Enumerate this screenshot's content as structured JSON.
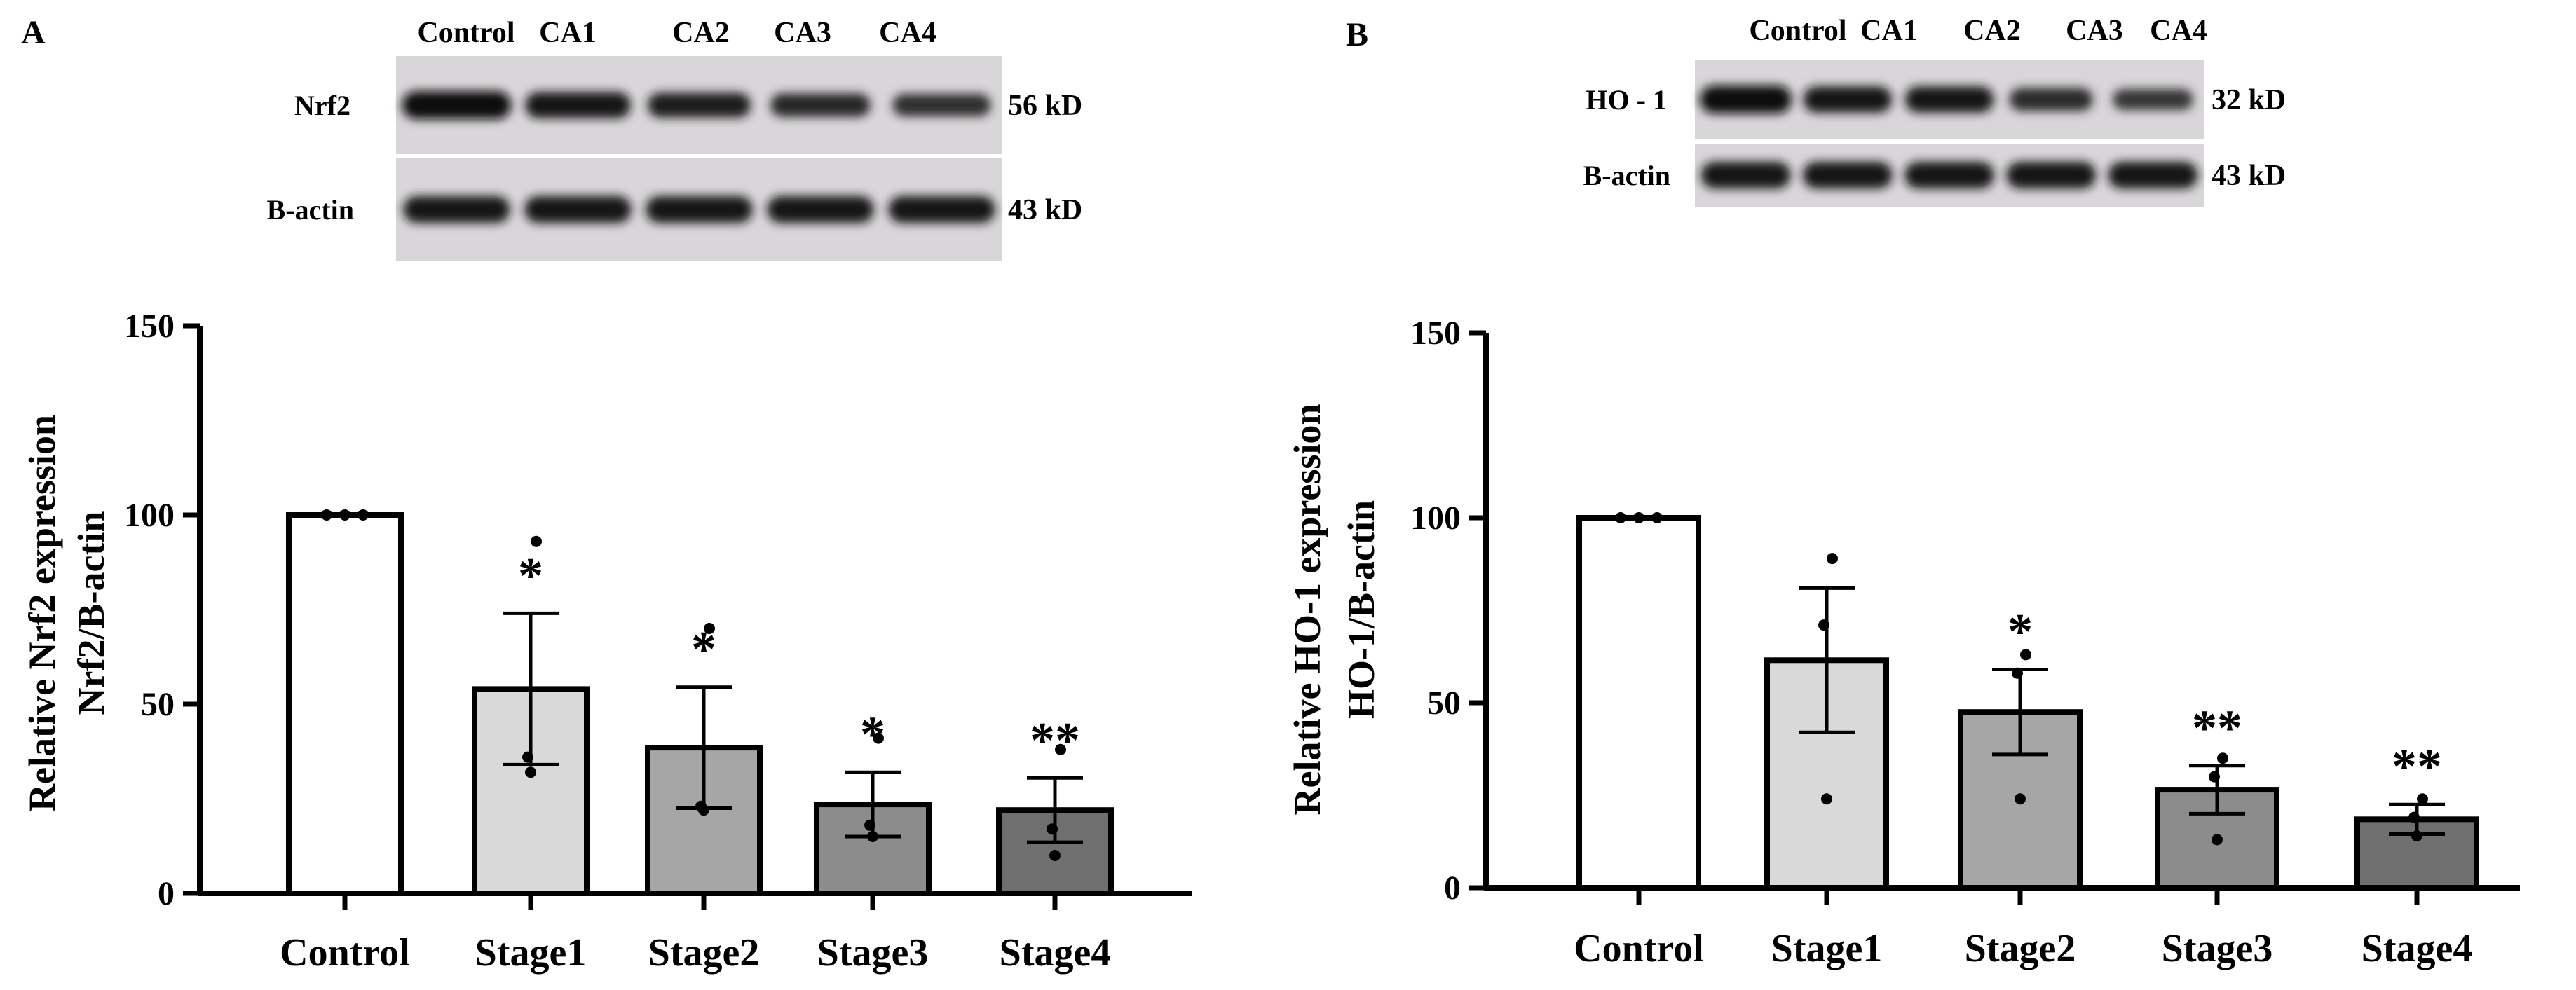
{
  "chart_data": [
    {
      "panel_label": "A",
      "type": "bar",
      "blot": {
        "lanes": [
          "Control",
          "CA1",
          "CA2",
          "CA3",
          "CA4"
        ],
        "rows": [
          {
            "label": "Nrf2",
            "size": "56 kD",
            "intensity": [
              1.0,
              0.85,
              0.75,
              0.62,
              0.55
            ]
          },
          {
            "label": "B-actin",
            "size": "43 kD",
            "intensity": [
              0.9,
              0.9,
              0.9,
              0.9,
              0.9
            ]
          }
        ]
      },
      "categories": [
        "Control",
        "Stage1",
        "Stage2",
        "Stage3",
        "Stage4"
      ],
      "values": [
        100,
        54,
        38.5,
        23.5,
        22
      ],
      "errors": [
        0,
        20,
        16,
        8.5,
        8.5
      ],
      "points": [
        [
          100,
          100,
          100
        ],
        [
          93,
          36,
          32
        ],
        [
          70,
          23,
          22
        ],
        [
          41,
          18,
          15
        ],
        [
          38,
          17,
          10
        ]
      ],
      "significance": [
        "",
        "*",
        "*",
        "*",
        "**"
      ],
      "fills": [
        "#ffffff",
        "#d9d9d9",
        "#a6a6a6",
        "#8c8c8c",
        "#6f6f6f"
      ],
      "ylabel": [
        "Relative Nrf2 expression",
        "Nrf2/B-actin"
      ],
      "yticks": [
        "0",
        "50",
        "100",
        "150"
      ],
      "ylim": [
        0,
        150
      ]
    },
    {
      "panel_label": "B",
      "type": "bar",
      "blot": {
        "lanes": [
          "Control",
          "CA1",
          "CA2",
          "CA3",
          "CA4"
        ],
        "rows": [
          {
            "label": "HO - 1",
            "size": "32 kD",
            "intensity": [
              1.0,
              0.85,
              0.85,
              0.6,
              0.45
            ]
          },
          {
            "label": "B-actin",
            "size": "43 kD",
            "intensity": [
              0.9,
              0.9,
              0.9,
              0.9,
              0.9
            ]
          }
        ]
      },
      "categories": [
        "Control",
        "Stage1",
        "Stage2",
        "Stage3",
        "Stage4"
      ],
      "values": [
        100,
        61.5,
        47.5,
        26.5,
        18.5
      ],
      "errors": [
        0,
        19.5,
        11.5,
        6.5,
        4
      ],
      "points": [
        [
          100,
          100,
          100
        ],
        [
          89,
          71,
          24
        ],
        [
          63,
          58,
          24
        ],
        [
          35,
          30,
          13
        ],
        [
          24,
          19,
          14
        ]
      ],
      "significance": [
        "",
        "",
        "*",
        "**",
        "**"
      ],
      "fills": [
        "#ffffff",
        "#d9d9d9",
        "#a6a6a6",
        "#8c8c8c",
        "#6f6f6f"
      ],
      "ylabel": [
        "Relative HO-1 expression",
        "HO-1/B-actin"
      ],
      "yticks": [
        "0",
        "50",
        "100",
        "150"
      ],
      "ylim": [
        0,
        150
      ]
    }
  ]
}
